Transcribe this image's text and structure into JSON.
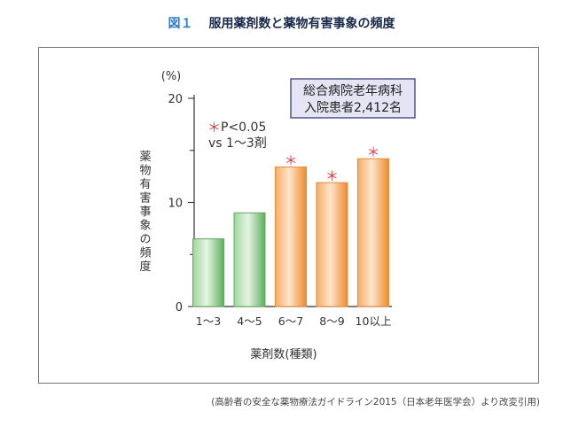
{
  "figure": {
    "label": "図１",
    "title": "服用薬剤数と薬物有害事象の頻度",
    "source": "(高齢者の安全な薬物療法ガイドライン2015（日本老年医学会）より改変引用)"
  },
  "chart_data": {
    "type": "bar",
    "categories": [
      "1～3",
      "4～5",
      "6～7",
      "8～9",
      "10以上"
    ],
    "values": [
      6.5,
      9.0,
      13.4,
      11.9,
      14.2
    ],
    "significant": [
      false,
      false,
      true,
      true,
      true
    ],
    "bar_colors": [
      "#7fc47e",
      "#7fc47e",
      "#f59a4a",
      "#f59a4a",
      "#f59a4a"
    ],
    "unit": "(%)",
    "ylabel": "薬物有害事象の頻度",
    "xlabel": "薬剤数(種類)",
    "yticks": [
      0,
      10,
      20
    ],
    "ylim": [
      0,
      20
    ],
    "legend_box": [
      "総合病院老年病科",
      "入院患者2,412名"
    ],
    "annotation": {
      "marker": "＊",
      "line1": "P<0.05",
      "line2": "vs 1～3剤"
    },
    "grid": false
  }
}
